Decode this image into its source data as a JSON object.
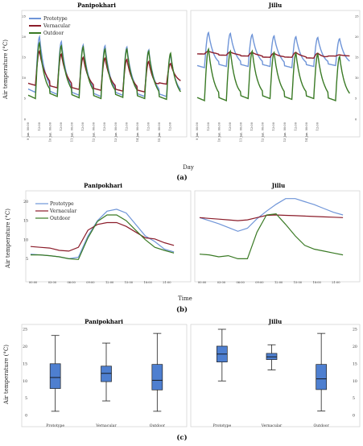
{
  "colors": {
    "prototype": "#6f95d8",
    "vernacular": "#8b1c2a",
    "outdoor": "#3a7a25",
    "box": "#4e7fd0",
    "frame": "#cfcfcf"
  },
  "legend": [
    "Prototype",
    "Vernacular",
    "Outdoor"
  ],
  "captions": {
    "a": "(a)",
    "b": "(b)",
    "c": "(c)"
  },
  "chart_data": [
    {
      "id": "a",
      "type": "line",
      "titles": [
        "Panipokhari",
        "Jillu"
      ],
      "ylabel": "Air temperature (°C)",
      "xlabel": "Day",
      "ylim": [
        0,
        25
      ],
      "yticks": [
        0,
        5,
        10,
        15,
        20,
        25
      ],
      "xticks_left": [
        "9 Jan. 00:00",
        "12:00",
        "10 Jan. 00:00",
        "12:00",
        "11 Jan. 00:00",
        "12:00",
        "12 Jan. 00:00",
        "12:00",
        "13 Jan. 00:00",
        "12:00",
        "14 Jan. 00:00",
        "12:00",
        "15 Jan. 00:00",
        "12:00"
      ],
      "xticks_right": [
        "9 Jan. 00:00",
        "12:00",
        "10 Jan. 00:00",
        "12:00",
        "11 Jan. 00:00",
        "12:00",
        "12 Jan. 00:00",
        "12:00",
        "13 Jan. 00:00",
        "12:00",
        "14 Jan. 00:00",
        "12:00"
      ],
      "panipokhari": {
        "days": 7,
        "prototype": {
          "min": [
            6.5,
            6,
            5.8,
            5.5,
            5.8,
            5.5,
            5.5
          ],
          "max": [
            20,
            18.8,
            18,
            17.8,
            17.5,
            16.8,
            15.5
          ]
        },
        "vernacular": {
          "min": [
            8.2,
            7.6,
            7.2,
            7,
            6.8,
            6.6,
            8.5
          ],
          "max": [
            16.5,
            15.8,
            15,
            14.8,
            14.5,
            14,
            13.5
          ]
        },
        "outdoor": {
          "min": [
            5,
            5.5,
            5.2,
            5,
            5.3,
            5,
            4.8
          ],
          "max": [
            18.5,
            17.8,
            17.5,
            17,
            17,
            16.5,
            16
          ]
        }
      },
      "jillu": {
        "days": 7,
        "prototype": {
          "min": [
            12.5,
            12.8,
            12.8,
            12.8,
            12.5,
            12.8,
            13
          ],
          "max": [
            21,
            20.8,
            20.5,
            20.2,
            20,
            19.8,
            19.5
          ]
        },
        "vernacular": {
          "min": [
            15.8,
            15.5,
            15.3,
            15,
            15,
            14.8,
            15.3
          ],
          "max": [
            16.5,
            16.3,
            16.2,
            16,
            16.2,
            16,
            15.6
          ]
        },
        "outdoor": {
          "min": [
            4.5,
            4.5,
            5,
            5,
            4.8,
            5,
            4.5
          ],
          "max": [
            17,
            16.5,
            16.5,
            16.2,
            16,
            15.8,
            15.2
          ]
        }
      }
    },
    {
      "id": "b",
      "type": "line",
      "titles": [
        "Panipokhari",
        "Jillu"
      ],
      "ylabel": "Air temperature (°C)",
      "xlabel": "Time",
      "ylim": [
        0,
        22
      ],
      "yticks": [
        5,
        10,
        15,
        20
      ],
      "xticks_left": [
        "00:00",
        "03:00",
        "06:00",
        "09:00",
        "12:00",
        "15:00",
        "18:00",
        "21:00"
      ],
      "xticks_right": [
        "00:00",
        "03:00",
        "06:00",
        "09:00",
        "12:00",
        "15:00",
        "18:00",
        "21:00"
      ],
      "hours": [
        0,
        1.5,
        3,
        4.5,
        6,
        7.5,
        9,
        10.5,
        12,
        13.5,
        15,
        16.5,
        18,
        19.5,
        21,
        22.5
      ],
      "panipokhari": {
        "prototype": [
          6.2,
          6,
          5.8,
          5.5,
          5,
          5.4,
          11,
          15,
          17.5,
          18,
          17,
          14,
          11,
          9.5,
          7.5,
          6.8
        ],
        "vernacular": [
          8.2,
          8,
          7.8,
          7.2,
          7,
          8,
          12.5,
          14,
          14.5,
          14.5,
          13.5,
          12,
          10.5,
          10.2,
          9.2,
          8.5
        ],
        "outdoor": [
          6,
          6,
          5.8,
          5.5,
          5,
          4.8,
          10.5,
          14.8,
          16.5,
          16.5,
          15,
          12.5,
          10,
          8,
          7.2,
          6.5
        ]
      },
      "jillu": {
        "prototype": [
          15.8,
          15,
          14.2,
          13.2,
          12.2,
          13,
          15.5,
          17.5,
          19.3,
          20.8,
          20.8,
          20,
          19.2,
          18.2,
          17.2,
          16.5
        ],
        "vernacular": [
          15.8,
          15.6,
          15.4,
          15.2,
          15,
          15.2,
          15.8,
          16.4,
          16.5,
          16.4,
          16.3,
          16.2,
          16.1,
          16,
          15.9,
          15.8
        ],
        "outdoor": [
          6.2,
          6,
          5.5,
          5.8,
          5,
          5,
          12,
          16.5,
          16.8,
          14,
          11,
          8.5,
          7.5,
          7,
          6.5,
          6
        ]
      }
    },
    {
      "id": "c",
      "type": "box",
      "titles": [
        "Panipokhari",
        "Jillu"
      ],
      "ylabel": "Air temperature (°C)",
      "ylim": [
        0,
        25
      ],
      "yticks": [
        0,
        5,
        10,
        15,
        20,
        25
      ],
      "categories": [
        "Prototype",
        "Vernacular",
        "Outdoor"
      ],
      "panipokhari": [
        {
          "min": 1.2,
          "q1": 7.8,
          "median": 11,
          "q3": 15,
          "max": 23.2
        },
        {
          "min": 4.2,
          "q1": 9.8,
          "median": 12.2,
          "q3": 14.3,
          "max": 21
        },
        {
          "min": 1.2,
          "q1": 7.4,
          "median": 10.2,
          "q3": 14.8,
          "max": 23.8
        }
      ],
      "jillu": [
        {
          "min": 10,
          "q1": 15.5,
          "median": 17.8,
          "q3": 20.1,
          "max": 25
        },
        {
          "min": 13.2,
          "q1": 16.2,
          "median": 17,
          "q3": 18,
          "max": 20.5
        },
        {
          "min": 1.3,
          "q1": 7.5,
          "median": 10.6,
          "q3": 14.8,
          "max": 23.8
        }
      ]
    }
  ]
}
